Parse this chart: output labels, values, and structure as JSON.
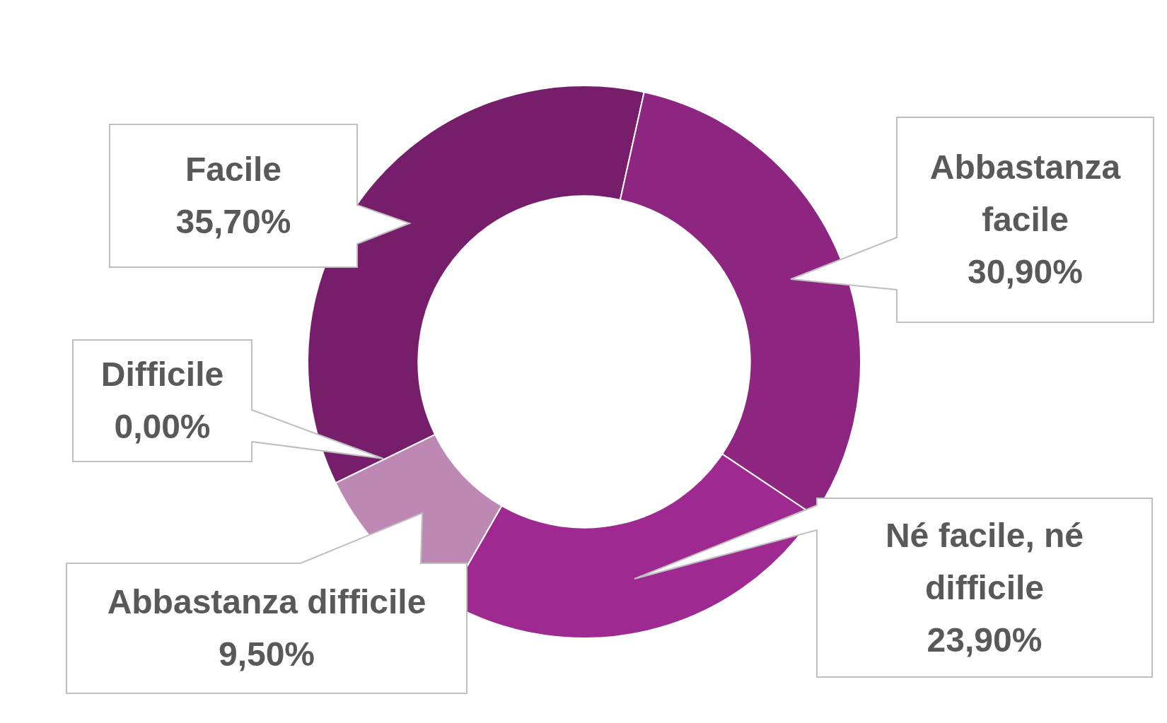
{
  "chart_data": {
    "type": "donut",
    "categories": [
      "Facile",
      "Abbastanza facile",
      "Né facile, né difficile",
      "Abbastanza difficile",
      "Difficile"
    ],
    "values": [
      35.7,
      30.9,
      23.9,
      9.5,
      0
    ],
    "value_labels": [
      "35,70%",
      "30,90%",
      "23,90%",
      "9,50%",
      "0,00%"
    ],
    "colors": [
      "#761d6b",
      "#8e2580",
      "#9e2a91",
      "#be88b4",
      "#d6b4cf"
    ],
    "legend": false
  }
}
